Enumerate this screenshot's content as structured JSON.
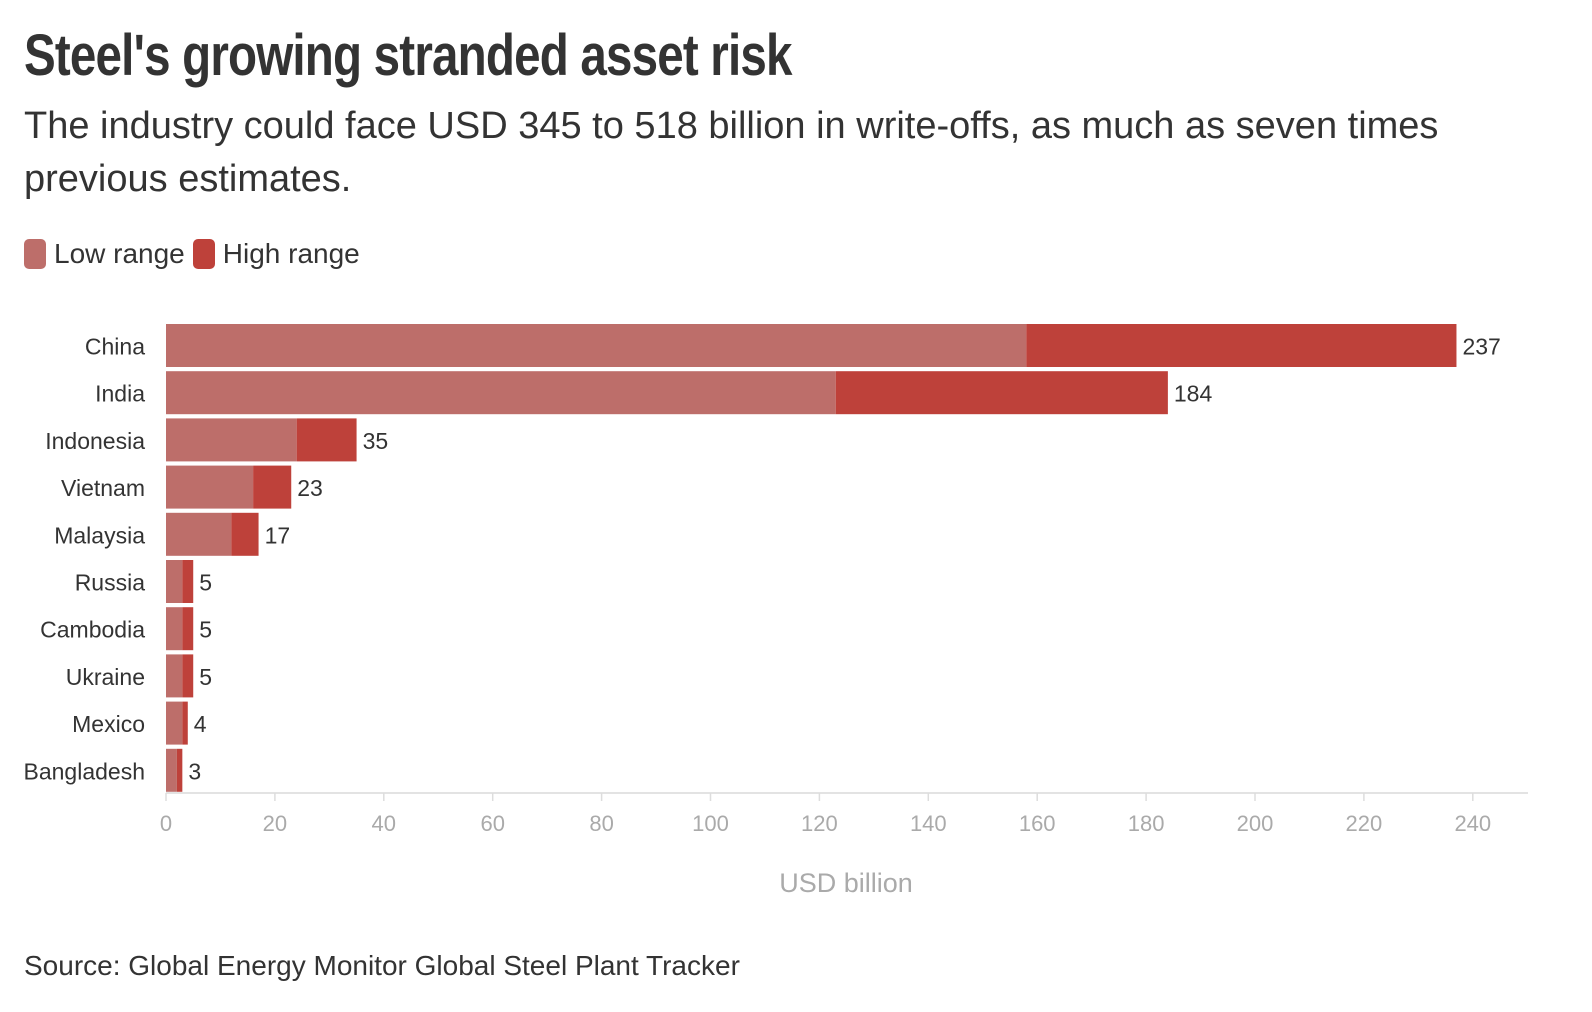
{
  "chart_data": {
    "type": "bar",
    "orientation": "horizontal",
    "stacked": true,
    "title": "Steel's growing stranded asset risk",
    "subtitle": "The industry could face USD 345 to 518 billion in write-offs, as much as seven times previous estimates.",
    "xlabel": "USD billion",
    "ylabel": "",
    "xlim": [
      0,
      250
    ],
    "xticks": [
      0,
      20,
      40,
      60,
      80,
      100,
      120,
      140,
      160,
      180,
      200,
      220,
      240
    ],
    "categories": [
      "China",
      "India",
      "Indonesia",
      "Vietnam",
      "Malaysia",
      "Russia",
      "Cambodia",
      "Ukraine",
      "Mexico",
      "Bangladesh"
    ],
    "series": [
      {
        "name": "Low range",
        "color": "#bd6e6a",
        "values": [
          158,
          123,
          24,
          16,
          12,
          3,
          3,
          3,
          3,
          2
        ]
      },
      {
        "name": "High range",
        "color": "#be413a",
        "values": [
          79,
          61,
          11,
          7,
          5,
          2,
          2,
          2,
          1,
          1
        ]
      }
    ],
    "totals": [
      237,
      184,
      35,
      23,
      17,
      5,
      5,
      5,
      4,
      3
    ],
    "legend": "top-left",
    "grid": false,
    "source": "Source: Global Energy Monitor Global Steel Plant Tracker"
  }
}
